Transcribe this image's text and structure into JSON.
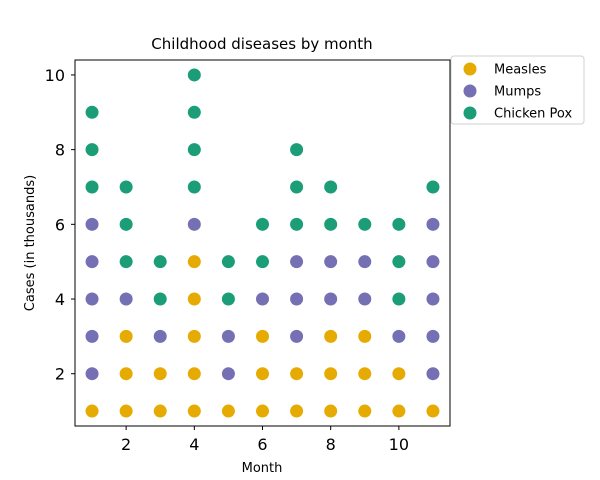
{
  "chart_data": {
    "type": "scatter",
    "title": "Childhood diseases by month",
    "xlabel": "Month",
    "ylabel": "Cases (in thousands)",
    "xlim": [
      0.5,
      11.5
    ],
    "ylim": [
      0.6,
      10.4
    ],
    "xticks": [
      2,
      4,
      6,
      8,
      10
    ],
    "yticks": [
      2,
      4,
      6,
      8,
      10
    ],
    "grid": false,
    "legend_position": "outside-top-right",
    "series": [
      {
        "name": "Measles",
        "color": "#e6ab02",
        "points": [
          [
            1,
            1
          ],
          [
            2,
            1
          ],
          [
            2,
            2
          ],
          [
            2,
            3
          ],
          [
            3,
            1
          ],
          [
            3,
            2
          ],
          [
            4,
            1
          ],
          [
            4,
            2
          ],
          [
            4,
            3
          ],
          [
            4,
            4
          ],
          [
            4,
            5
          ],
          [
            5,
            1
          ],
          [
            6,
            1
          ],
          [
            6,
            2
          ],
          [
            6,
            3
          ],
          [
            7,
            1
          ],
          [
            7,
            2
          ],
          [
            8,
            1
          ],
          [
            8,
            2
          ],
          [
            8,
            3
          ],
          [
            9,
            1
          ],
          [
            9,
            2
          ],
          [
            9,
            3
          ],
          [
            10,
            1
          ],
          [
            10,
            2
          ],
          [
            11,
            1
          ]
        ]
      },
      {
        "name": "Mumps",
        "color": "#7570b3",
        "points": [
          [
            1,
            2
          ],
          [
            1,
            3
          ],
          [
            1,
            4
          ],
          [
            1,
            5
          ],
          [
            1,
            6
          ],
          [
            2,
            4
          ],
          [
            3,
            3
          ],
          [
            4,
            6
          ],
          [
            5,
            2
          ],
          [
            5,
            3
          ],
          [
            6,
            4
          ],
          [
            7,
            3
          ],
          [
            7,
            4
          ],
          [
            7,
            5
          ],
          [
            8,
            4
          ],
          [
            8,
            5
          ],
          [
            9,
            4
          ],
          [
            9,
            5
          ],
          [
            10,
            3
          ],
          [
            11,
            2
          ],
          [
            11,
            3
          ],
          [
            11,
            4
          ],
          [
            11,
            5
          ],
          [
            11,
            6
          ]
        ]
      },
      {
        "name": "Chicken Pox",
        "color": "#1b9e77",
        "points": [
          [
            1,
            7
          ],
          [
            1,
            8
          ],
          [
            1,
            9
          ],
          [
            2,
            5
          ],
          [
            2,
            6
          ],
          [
            2,
            7
          ],
          [
            3,
            4
          ],
          [
            3,
            5
          ],
          [
            4,
            7
          ],
          [
            4,
            8
          ],
          [
            4,
            9
          ],
          [
            4,
            10
          ],
          [
            5,
            4
          ],
          [
            5,
            5
          ],
          [
            6,
            5
          ],
          [
            6,
            6
          ],
          [
            7,
            6
          ],
          [
            7,
            7
          ],
          [
            7,
            8
          ],
          [
            8,
            6
          ],
          [
            8,
            7
          ],
          [
            9,
            6
          ],
          [
            10,
            4
          ],
          [
            10,
            5
          ],
          [
            10,
            6
          ],
          [
            11,
            7
          ]
        ]
      }
    ]
  }
}
